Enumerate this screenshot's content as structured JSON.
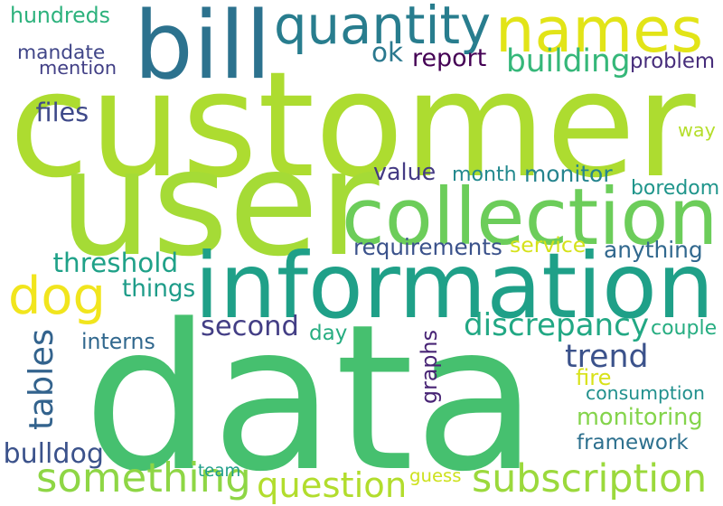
{
  "words": [
    {
      "text": "data",
      "color": "#46c06f"
    },
    {
      "text": "customer",
      "color": "#addc30"
    },
    {
      "text": "user",
      "color": "#a5db36"
    },
    {
      "text": "information",
      "color": "#1fa088"
    },
    {
      "text": "collection",
      "color": "#6ccd5a"
    },
    {
      "text": "names",
      "color": "#e2e418"
    },
    {
      "text": "bill",
      "color": "#2c728e"
    },
    {
      "text": "quantity",
      "color": "#287d8e"
    },
    {
      "text": "dog",
      "color": "#f1e51d"
    },
    {
      "text": "subscription",
      "color": "#9bd93c"
    },
    {
      "text": "discrepancy",
      "color": "#22a884"
    },
    {
      "text": "second",
      "color": "#433e85"
    },
    {
      "text": "something",
      "color": "#8ed645"
    },
    {
      "text": "question",
      "color": "#b2dd2d"
    },
    {
      "text": "tables",
      "color": "#33638d"
    },
    {
      "text": "trend",
      "color": "#3b528b"
    },
    {
      "text": "ok",
      "color": "#2a788e"
    },
    {
      "text": "monitoring",
      "color": "#84d44b"
    },
    {
      "text": "framework",
      "color": "#2d708e"
    },
    {
      "text": "requirements",
      "color": "#3b528b"
    },
    {
      "text": "threshold",
      "color": "#1fa188"
    },
    {
      "text": "boredom",
      "color": "#1f958b"
    },
    {
      "text": "month",
      "color": "#23898e"
    },
    {
      "text": "monitor",
      "color": "#25848e"
    },
    {
      "text": "anything",
      "color": "#31688e"
    },
    {
      "text": "things",
      "color": "#1e9c89"
    },
    {
      "text": "graphs",
      "color": "#482475"
    },
    {
      "text": "bulldog",
      "color": "#3b528b"
    },
    {
      "text": "building",
      "color": "#35b779"
    },
    {
      "text": "problem",
      "color": "#472d7b"
    },
    {
      "text": "report",
      "color": "#440154"
    },
    {
      "text": "value",
      "color": "#443a83"
    },
    {
      "text": "day",
      "color": "#27ad81"
    },
    {
      "text": "way",
      "color": "#b5de2b"
    },
    {
      "text": "couple",
      "color": "#26ad81"
    },
    {
      "text": "fire",
      "color": "#d8e219"
    },
    {
      "text": "consumption",
      "color": "#21908d"
    },
    {
      "text": "hundreds",
      "color": "#2db27d"
    },
    {
      "text": "mandate",
      "color": "#404688"
    },
    {
      "text": "mention",
      "color": "#424086"
    },
    {
      "text": "files",
      "color": "#3e4989"
    },
    {
      "text": "interns",
      "color": "#31688e"
    },
    {
      "text": "service",
      "color": "#d5e21a"
    },
    {
      "text": "team",
      "color": "#1f9e89"
    },
    {
      "text": "guess",
      "color": "#cde11d"
    }
  ]
}
